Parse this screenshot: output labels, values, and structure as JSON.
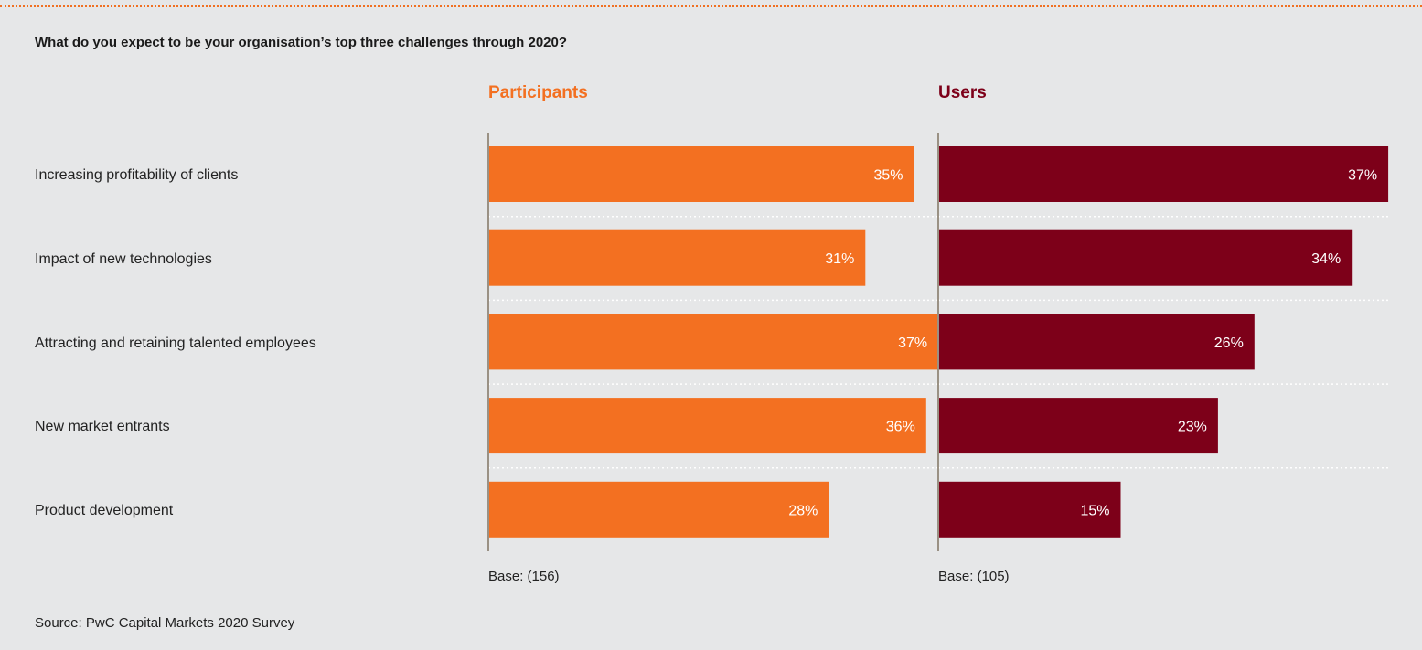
{
  "question": "What do you expect to be your organisation’s top three challenges through 2020?",
  "source": "Source: PwC Capital Markets 2020 Survey",
  "colors": {
    "accent": "#f07022",
    "participants": "#f37021",
    "users": "#7d0019",
    "background": "#e6e7e8"
  },
  "chart_data": {
    "type": "bar",
    "orientation": "horizontal",
    "categories": [
      "Increasing profitability of clients",
      "Impact of new technologies",
      "Attracting and retaining talented employees",
      "New market entrants",
      "Product development"
    ],
    "series": [
      {
        "name": "Participants",
        "values": [
          35,
          31,
          37,
          36,
          28
        ],
        "labels": [
          "35%",
          "31%",
          "37%",
          "36%",
          "28%"
        ],
        "base": "Base: (156)"
      },
      {
        "name": "Users",
        "values": [
          37,
          34,
          26,
          23,
          15
        ],
        "labels": [
          "37%",
          "34%",
          "26%",
          "23%",
          "15%"
        ],
        "base": "Base: (105)"
      }
    ],
    "xlim": [
      0,
      40
    ],
    "legend": "none",
    "grid": false
  }
}
